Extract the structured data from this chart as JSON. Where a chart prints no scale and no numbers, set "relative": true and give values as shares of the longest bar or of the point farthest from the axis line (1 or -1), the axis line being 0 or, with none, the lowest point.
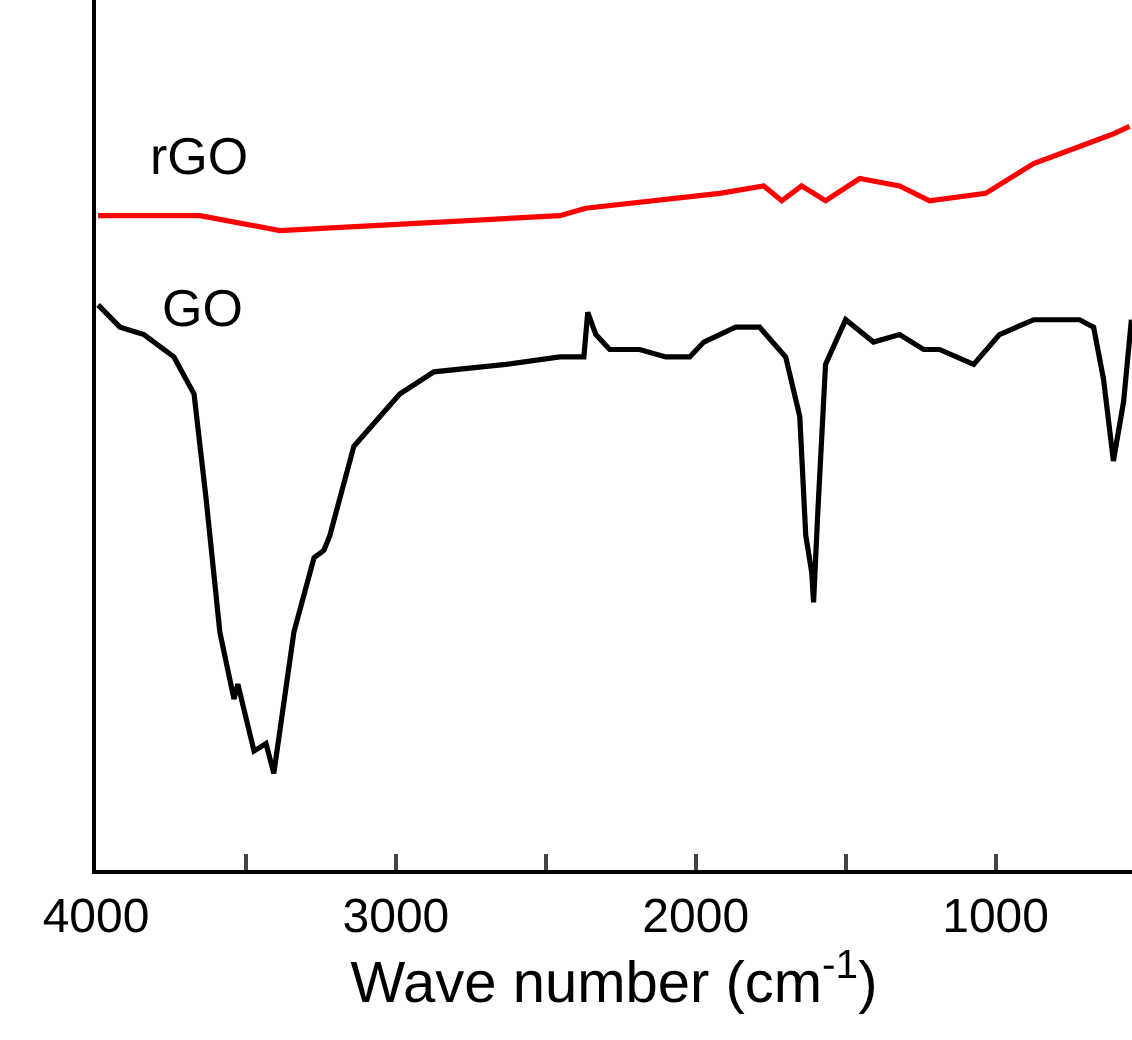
{
  "chart_data": {
    "type": "line",
    "relative": true,
    "xlabel": "Wave number (cm$^{-1}$)",
    "xlim": [
      4000,
      545
    ],
    "xticks": [
      4000,
      {
        "value": 3500,
        "label": null
      },
      3000,
      {
        "value": 2500,
        "label": null
      },
      2000,
      {
        "value": 1500,
        "label": null
      },
      1000
    ],
    "grid": false,
    "legend": false,
    "marker": "none",
    "line_style": "solid",
    "tick_labels": "x",
    "series": [
      {
        "name": "rGO",
        "color": "#ff0000",
        "x": [
          3993,
          3653,
          3387,
          2453,
          2367,
          1920,
          1773,
          1713,
          1647,
          1567,
          1453,
          1320,
          1220,
          1033,
          873,
          673,
          607,
          553
        ],
        "values": [
          0.88,
          0.88,
          0.86,
          0.88,
          0.89,
          0.91,
          0.92,
          0.9,
          0.92,
          0.9,
          0.93,
          0.92,
          0.9,
          0.91,
          0.95,
          0.98,
          0.99,
          1
        ]
      },
      {
        "name": "GO",
        "color": "#000000",
        "x": [
          3993,
          3920,
          3840,
          3740,
          3673,
          3633,
          3587,
          3540,
          3527,
          3473,
          3433,
          3407,
          3340,
          3273,
          3240,
          3220,
          3140,
          2987,
          2873,
          2633,
          2453,
          2373,
          2360,
          2333,
          2287,
          2187,
          2100,
          2020,
          1973,
          1867,
          1787,
          1700,
          1653,
          1633,
          1613,
          1607,
          1593,
          1567,
          1500,
          1407,
          1320,
          1240,
          1187,
          1073,
          987,
          873,
          720,
          673,
          640,
          607,
          573,
          547
        ],
        "values": [
          0.76,
          0.73,
          0.72,
          0.69,
          0.64,
          0.5,
          0.32,
          0.23,
          0.25,
          0.16,
          0.17,
          0.13,
          0.32,
          0.42,
          0.43,
          0.45,
          0.57,
          0.64,
          0.67,
          0.68,
          0.69,
          0.69,
          0.75,
          0.72,
          0.7,
          0.7,
          0.69,
          0.69,
          0.71,
          0.73,
          0.73,
          0.69,
          0.61,
          0.45,
          0.4,
          0.36,
          0.48,
          0.68,
          0.74,
          0.71,
          0.72,
          0.7,
          0.7,
          0.68,
          0.72,
          0.74,
          0.74,
          0.73,
          0.66,
          0.55,
          0.63,
          0.74
        ]
      }
    ]
  }
}
